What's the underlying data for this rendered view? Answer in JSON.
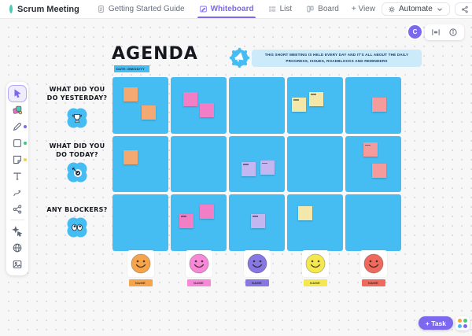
{
  "topbar": {
    "title": "Scrum Meeting",
    "tabs": [
      {
        "label": "Getting Started Guide",
        "icon": "doc-icon",
        "active": false
      },
      {
        "label": "Whiteboard",
        "icon": "whiteboard-icon",
        "active": true
      },
      {
        "label": "List",
        "icon": "list-icon",
        "active": false
      },
      {
        "label": "Board",
        "icon": "board-icon",
        "active": false
      }
    ],
    "add_view": "+ View",
    "automate": "Automate",
    "share": "Share"
  },
  "canvas_controls": {
    "avatar_initial": "C"
  },
  "toolbar": {
    "items": [
      {
        "icon": "cursor-icon",
        "name": "select",
        "active": true
      },
      {
        "icon": "templates-icon",
        "name": "templates"
      },
      {
        "icon": "pen-icon",
        "name": "pen",
        "dot": "#7B68EE"
      },
      {
        "icon": "shape-icon",
        "name": "shapes",
        "dot": "#35CE75"
      },
      {
        "icon": "sticky-icon",
        "name": "sticky-note",
        "dot": "#F7CE46"
      },
      {
        "icon": "text-icon",
        "name": "text"
      },
      {
        "icon": "connector-icon",
        "name": "connector"
      },
      {
        "icon": "nodes-icon",
        "name": "mind-map"
      },
      {
        "type": "divider"
      },
      {
        "icon": "ai-icon",
        "name": "ai"
      },
      {
        "icon": "globe-icon",
        "name": "embed"
      },
      {
        "icon": "image-icon",
        "name": "image"
      }
    ]
  },
  "board": {
    "title": "AGENDA",
    "date_label": "DATE: MM/DD/YY",
    "announcement": "THIS SHORT MEETING IS HELD EVERY DAY AND IT'S ALL ABOUT THE DAILY PROGRESS, ISSUES, ROADBLOCKS AND REMINDERS",
    "rows": [
      {
        "label": "WHAT DID YOU\nDO YESTERDAY?",
        "icon": "trophy-icon"
      },
      {
        "label": "WHAT DID YOU\nDO TODAY?",
        "icon": "target-icon"
      },
      {
        "label": "ANY BLOCKERS?",
        "icon": "eyes-icon"
      }
    ],
    "columns": 5,
    "cell_color": "#45BDF3",
    "sticky_colors": {
      "orange": "#F4A972",
      "pink": "#F27FC6",
      "yellow": "#F3E8AA",
      "lavender": "#C4B6F0",
      "salmon": "#F59B9B"
    },
    "stickies": [
      {
        "row": 0,
        "col": 0,
        "x": 0.2,
        "y": 0.18,
        "color": "orange",
        "mark": false
      },
      {
        "row": 0,
        "col": 0,
        "x": 0.52,
        "y": 0.5,
        "color": "orange",
        "mark": false
      },
      {
        "row": 0,
        "col": 1,
        "x": 0.22,
        "y": 0.26,
        "color": "pink",
        "mark": false
      },
      {
        "row": 0,
        "col": 1,
        "x": 0.52,
        "y": 0.46,
        "color": "pink",
        "mark": false
      },
      {
        "row": 0,
        "col": 3,
        "x": 0.08,
        "y": 0.36,
        "color": "yellow",
        "mark": true
      },
      {
        "row": 0,
        "col": 3,
        "x": 0.4,
        "y": 0.26,
        "color": "yellow",
        "mark": true
      },
      {
        "row": 0,
        "col": 4,
        "x": 0.48,
        "y": 0.36,
        "color": "salmon",
        "mark": false
      },
      {
        "row": 1,
        "col": 0,
        "x": 0.2,
        "y": 0.26,
        "color": "orange",
        "mark": false
      },
      {
        "row": 1,
        "col": 2,
        "x": 0.22,
        "y": 0.46,
        "color": "lavender",
        "mark": true
      },
      {
        "row": 1,
        "col": 2,
        "x": 0.56,
        "y": 0.44,
        "color": "lavender",
        "mark": true
      },
      {
        "row": 1,
        "col": 4,
        "x": 0.32,
        "y": 0.12,
        "color": "salmon",
        "mark": true
      },
      {
        "row": 1,
        "col": 4,
        "x": 0.48,
        "y": 0.5,
        "color": "salmon",
        "mark": false
      },
      {
        "row": 2,
        "col": 1,
        "x": 0.15,
        "y": 0.34,
        "color": "pink",
        "mark": true
      },
      {
        "row": 2,
        "col": 1,
        "x": 0.52,
        "y": 0.18,
        "color": "pink",
        "mark": false
      },
      {
        "row": 2,
        "col": 2,
        "x": 0.4,
        "y": 0.34,
        "color": "lavender",
        "mark": true
      },
      {
        "row": 2,
        "col": 3,
        "x": 0.2,
        "y": 0.2,
        "color": "yellow",
        "mark": false
      }
    ],
    "members": [
      {
        "name": "NAME",
        "color": "#F6A44C"
      },
      {
        "name": "NAME",
        "color": "#F788D8"
      },
      {
        "name": "NAME",
        "color": "#8677E3"
      },
      {
        "name": "NAME",
        "color": "#F5E74F"
      },
      {
        "name": "NAME",
        "color": "#EF6A5E"
      }
    ]
  },
  "footer": {
    "task_button": "+ Task"
  }
}
